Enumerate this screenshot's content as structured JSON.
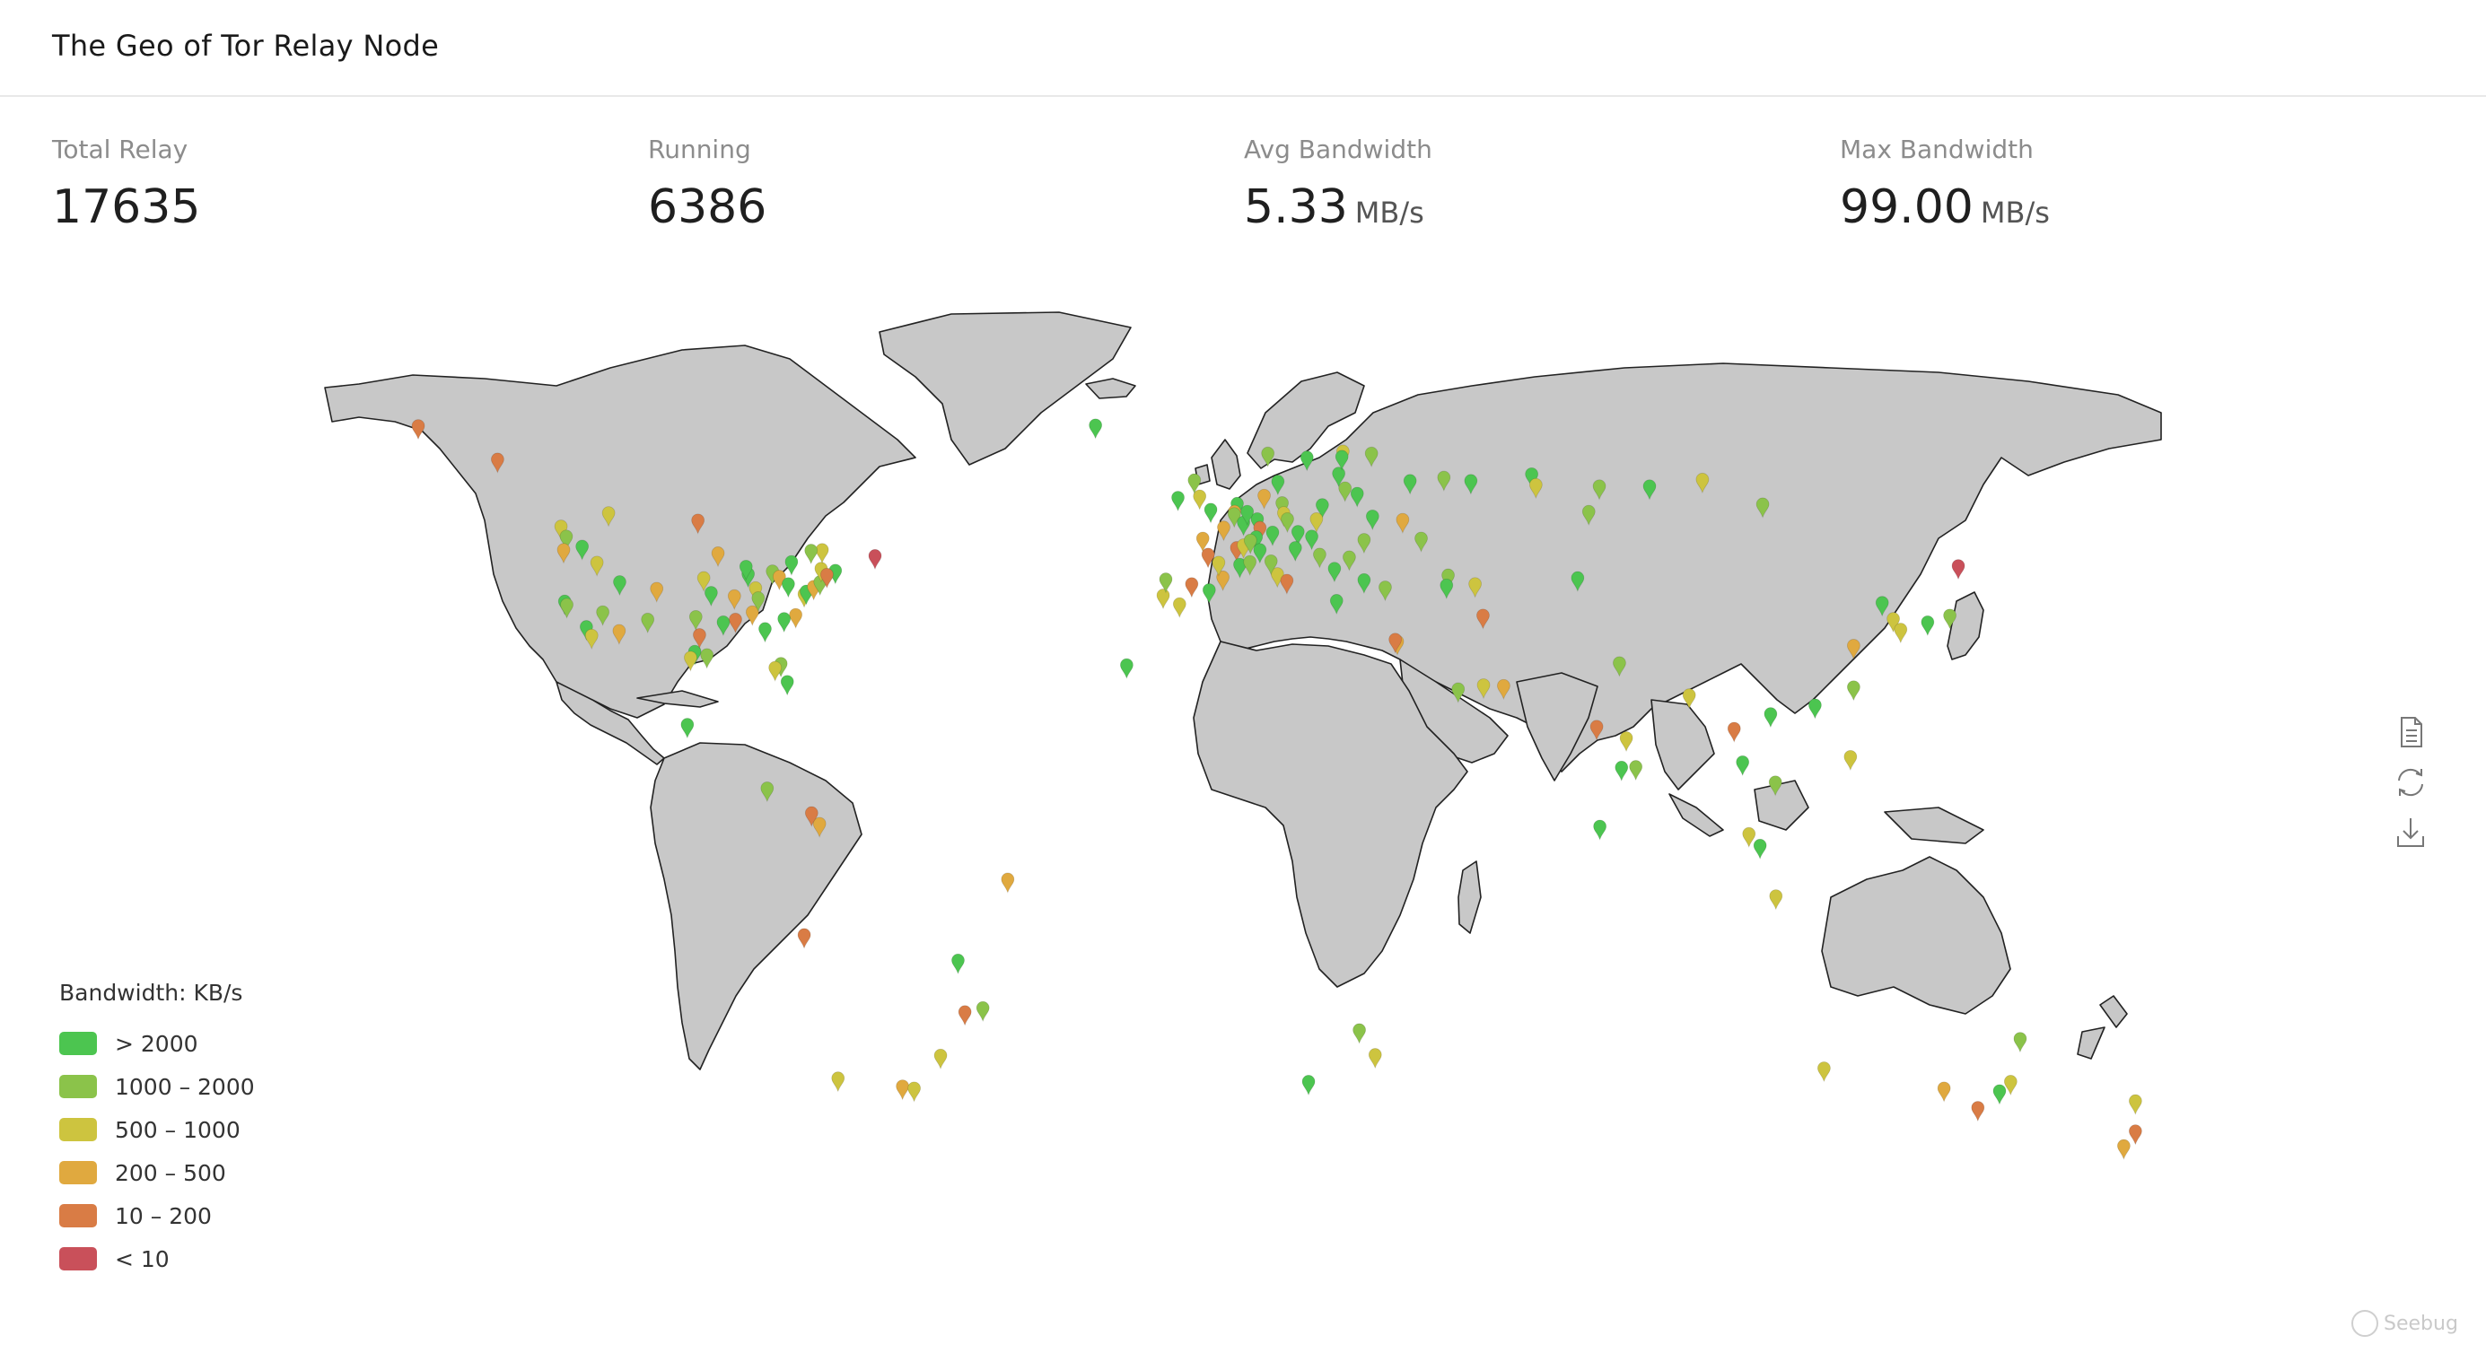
{
  "header": {
    "title": "The Geo of Tor Relay Node"
  },
  "stats": [
    {
      "label": "Total Relay",
      "value": "17635",
      "unit": ""
    },
    {
      "label": "Running",
      "value": "6386",
      "unit": ""
    },
    {
      "label": "Avg Bandwidth",
      "value": "5.33",
      "unit": "MB/s"
    },
    {
      "label": "Max Bandwidth",
      "value": "99.00",
      "unit": "MB/s"
    }
  ],
  "legend": {
    "title": "Bandwidth: KB/s",
    "items": [
      {
        "label": "> 2000",
        "color": "#4cc550"
      },
      {
        "label": "1000 – 2000",
        "color": "#8bc34a"
      },
      {
        "label": "500 – 1000",
        "color": "#cdc43f"
      },
      {
        "label": "200 – 500",
        "color": "#e0a93f"
      },
      {
        "label": "10 – 200",
        "color": "#d97c45"
      },
      {
        "label": "< 10",
        "color": "#c9505a"
      }
    ]
  },
  "toolbox": [
    "data-view-icon",
    "restore-icon",
    "save-image-icon"
  ],
  "watermark": "Seebug",
  "map": {
    "projection": "equirectangular",
    "land_color": "#c8c8c8",
    "border_color": "#222222",
    "markers": [
      {
        "lon": -150,
        "lat": 64,
        "c": 4
      },
      {
        "lon": -135,
        "lat": 59,
        "c": 4
      },
      {
        "lon": -123,
        "lat": 49,
        "c": 2
      },
      {
        "lon": -122,
        "lat": 47.5,
        "c": 1
      },
      {
        "lon": -122.5,
        "lat": 45.5,
        "c": 3
      },
      {
        "lon": -119,
        "lat": 46,
        "c": 0
      },
      {
        "lon": -122.3,
        "lat": 37.8,
        "c": 0
      },
      {
        "lon": -121.9,
        "lat": 37.3,
        "c": 1
      },
      {
        "lon": -118.2,
        "lat": 34,
        "c": 0
      },
      {
        "lon": -117.2,
        "lat": 32.7,
        "c": 2
      },
      {
        "lon": -115.1,
        "lat": 36.2,
        "c": 1
      },
      {
        "lon": -112,
        "lat": 33.4,
        "c": 3
      },
      {
        "lon": -111.9,
        "lat": 40.7,
        "c": 0
      },
      {
        "lon": -116.2,
        "lat": 43.6,
        "c": 2
      },
      {
        "lon": -104.9,
        "lat": 39.7,
        "c": 3
      },
      {
        "lon": -106.6,
        "lat": 35.1,
        "c": 1
      },
      {
        "lon": -97.7,
        "lat": 30.3,
        "c": 0
      },
      {
        "lon": -96.8,
        "lat": 32.8,
        "c": 4
      },
      {
        "lon": -95.4,
        "lat": 29.8,
        "c": 1
      },
      {
        "lon": -98.5,
        "lat": 29.4,
        "c": 2
      },
      {
        "lon": -93.3,
        "lat": 45,
        "c": 3
      },
      {
        "lon": -94.6,
        "lat": 39.1,
        "c": 0
      },
      {
        "lon": -90.2,
        "lat": 38.6,
        "c": 3
      },
      {
        "lon": -87.6,
        "lat": 41.9,
        "c": 0
      },
      {
        "lon": -86.2,
        "lat": 39.8,
        "c": 2
      },
      {
        "lon": -84.4,
        "lat": 33.7,
        "c": 0
      },
      {
        "lon": -83,
        "lat": 42.3,
        "c": 1
      },
      {
        "lon": -81.7,
        "lat": 41.5,
        "c": 3
      },
      {
        "lon": -80,
        "lat": 40.4,
        "c": 0
      },
      {
        "lon": -77,
        "lat": 38.9,
        "c": 2
      },
      {
        "lon": -76.6,
        "lat": 39.3,
        "c": 0
      },
      {
        "lon": -75.2,
        "lat": 40,
        "c": 3
      },
      {
        "lon": -74,
        "lat": 40.7,
        "c": 1
      },
      {
        "lon": -73.8,
        "lat": 42.7,
        "c": 2
      },
      {
        "lon": -71.1,
        "lat": 42.4,
        "c": 0
      },
      {
        "lon": -72.7,
        "lat": 41.8,
        "c": 4
      },
      {
        "lon": -78.6,
        "lat": 35.8,
        "c": 3
      },
      {
        "lon": -80.8,
        "lat": 35.2,
        "c": 0
      },
      {
        "lon": -81.4,
        "lat": 28.5,
        "c": 1
      },
      {
        "lon": -80.2,
        "lat": 25.8,
        "c": 0
      },
      {
        "lon": -82.5,
        "lat": 27.9,
        "c": 2
      },
      {
        "lon": -86.8,
        "lat": 36.2,
        "c": 3
      },
      {
        "lon": -85.7,
        "lat": 38.3,
        "c": 1
      },
      {
        "lon": -90,
        "lat": 35.1,
        "c": 4
      },
      {
        "lon": -92.3,
        "lat": 34.7,
        "c": 0
      },
      {
        "lon": -97.5,
        "lat": 35.5,
        "c": 1
      },
      {
        "lon": -96,
        "lat": 41.3,
        "c": 2
      },
      {
        "lon": -88,
        "lat": 43,
        "c": 0
      },
      {
        "lon": -79.4,
        "lat": 43.7,
        "c": 0
      },
      {
        "lon": -73.6,
        "lat": 45.5,
        "c": 2
      },
      {
        "lon": -75.7,
        "lat": 45.4,
        "c": 1
      },
      {
        "lon": -63.6,
        "lat": 44.6,
        "c": 5
      },
      {
        "lon": -114,
        "lat": 51,
        "c": 2
      },
      {
        "lon": -97.1,
        "lat": 49.9,
        "c": 4
      },
      {
        "lon": -99.1,
        "lat": 19.4,
        "c": 0
      },
      {
        "lon": -84,
        "lat": 9.9,
        "c": 1
      },
      {
        "lon": -74.1,
        "lat": 4.6,
        "c": 3
      },
      {
        "lon": -75.6,
        "lat": 6.2,
        "c": 4
      },
      {
        "lon": -77,
        "lat": -12,
        "c": 4
      },
      {
        "lon": -70.6,
        "lat": -33.4,
        "c": 2
      },
      {
        "lon": -58.4,
        "lat": -34.6,
        "c": 3
      },
      {
        "lon": -56.2,
        "lat": -34.9,
        "c": 2
      },
      {
        "lon": -46.6,
        "lat": -23.5,
        "c": 4
      },
      {
        "lon": -43.2,
        "lat": -22.9,
        "c": 1
      },
      {
        "lon": -47.9,
        "lat": -15.8,
        "c": 0
      },
      {
        "lon": -38.5,
        "lat": -3.7,
        "c": 3
      },
      {
        "lon": -51.2,
        "lat": -30,
        "c": 2
      },
      {
        "lon": -21.9,
        "lat": 64.1,
        "c": 0
      },
      {
        "lon": -16,
        "lat": 28.3,
        "c": 0
      },
      {
        "lon": -9.1,
        "lat": 38.7,
        "c": 2
      },
      {
        "lon": -8.6,
        "lat": 41.1,
        "c": 1
      },
      {
        "lon": -3.7,
        "lat": 40.4,
        "c": 4
      },
      {
        "lon": 2.2,
        "lat": 41.4,
        "c": 3
      },
      {
        "lon": -0.4,
        "lat": 39.5,
        "c": 0
      },
      {
        "lon": -6,
        "lat": 37.4,
        "c": 2
      },
      {
        "lon": 2.35,
        "lat": 48.85,
        "c": 3
      },
      {
        "lon": 4.8,
        "lat": 45.8,
        "c": 4
      },
      {
        "lon": 5.4,
        "lat": 43.3,
        "c": 0
      },
      {
        "lon": -1.6,
        "lat": 47.2,
        "c": 3
      },
      {
        "lon": -0.6,
        "lat": 44.8,
        "c": 4
      },
      {
        "lon": 1.4,
        "lat": 43.6,
        "c": 2
      },
      {
        "lon": 7.3,
        "lat": 43.7,
        "c": 1
      },
      {
        "lon": -0.1,
        "lat": 51.5,
        "c": 0
      },
      {
        "lon": -2.2,
        "lat": 53.5,
        "c": 2
      },
      {
        "lon": -3.2,
        "lat": 55.9,
        "c": 1
      },
      {
        "lon": -6.3,
        "lat": 53.3,
        "c": 0
      },
      {
        "lon": 4.9,
        "lat": 52.4,
        "c": 0
      },
      {
        "lon": 4.4,
        "lat": 51.2,
        "c": 3
      },
      {
        "lon": 4.35,
        "lat": 50.85,
        "c": 1
      },
      {
        "lon": 6.1,
        "lat": 49.6,
        "c": 0
      },
      {
        "lon": 8.7,
        "lat": 50.1,
        "c": 0
      },
      {
        "lon": 13.4,
        "lat": 52.5,
        "c": 1
      },
      {
        "lon": 10,
        "lat": 53.6,
        "c": 3
      },
      {
        "lon": 11.6,
        "lat": 48.1,
        "c": 0
      },
      {
        "lon": 9.2,
        "lat": 48.8,
        "c": 4
      },
      {
        "lon": 6.8,
        "lat": 51.2,
        "c": 0
      },
      {
        "lon": 13.7,
        "lat": 51,
        "c": 2
      },
      {
        "lon": 8.5,
        "lat": 47.4,
        "c": 0
      },
      {
        "lon": 6.1,
        "lat": 46.2,
        "c": 2
      },
      {
        "lon": 7.4,
        "lat": 46.9,
        "c": 1
      },
      {
        "lon": 16.4,
        "lat": 48.2,
        "c": 0
      },
      {
        "lon": 14.4,
        "lat": 50.1,
        "c": 1
      },
      {
        "lon": 19,
        "lat": 47.5,
        "c": 0
      },
      {
        "lon": 21,
        "lat": 52.2,
        "c": 0
      },
      {
        "lon": 19.9,
        "lat": 50.1,
        "c": 2
      },
      {
        "lon": 12.6,
        "lat": 55.7,
        "c": 0
      },
      {
        "lon": 10.7,
        "lat": 59.9,
        "c": 1
      },
      {
        "lon": 18.1,
        "lat": 59.3,
        "c": 0
      },
      {
        "lon": 24.9,
        "lat": 60.2,
        "c": 2
      },
      {
        "lon": 24.1,
        "lat": 56.9,
        "c": 0
      },
      {
        "lon": 25.3,
        "lat": 54.7,
        "c": 1
      },
      {
        "lon": 24.7,
        "lat": 59.4,
        "c": 0
      },
      {
        "lon": 12.5,
        "lat": 41.9,
        "c": 2
      },
      {
        "lon": 9.2,
        "lat": 45.5,
        "c": 0
      },
      {
        "lon": 11.3,
        "lat": 43.8,
        "c": 1
      },
      {
        "lon": 14.3,
        "lat": 40.9,
        "c": 4
      },
      {
        "lon": 23.7,
        "lat": 37.9,
        "c": 0
      },
      {
        "lon": 26.1,
        "lat": 44.4,
        "c": 1
      },
      {
        "lon": 23.3,
        "lat": 42.7,
        "c": 0
      },
      {
        "lon": 20.5,
        "lat": 44.8,
        "c": 1
      },
      {
        "lon": 15.9,
        "lat": 45.8,
        "c": 0
      },
      {
        "lon": 30.5,
        "lat": 50.5,
        "c": 0
      },
      {
        "lon": 28.9,
        "lat": 47,
        "c": 1
      },
      {
        "lon": 27.6,
        "lat": 53.9,
        "c": 0
      },
      {
        "lon": 30.3,
        "lat": 59.9,
        "c": 1
      },
      {
        "lon": 37.6,
        "lat": 55.8,
        "c": 0
      },
      {
        "lon": 36.2,
        "lat": 50,
        "c": 3
      },
      {
        "lon": 39.7,
        "lat": 47.2,
        "c": 1
      },
      {
        "lon": 49.1,
        "lat": 55.8,
        "c": 0
      },
      {
        "lon": 44,
        "lat": 56.3,
        "c": 1
      },
      {
        "lon": 60.6,
        "lat": 56.8,
        "c": 0
      },
      {
        "lon": 73.4,
        "lat": 55,
        "c": 1
      },
      {
        "lon": 82.9,
        "lat": 55,
        "c": 0
      },
      {
        "lon": 92.9,
        "lat": 56,
        "c": 2
      },
      {
        "lon": 104.3,
        "lat": 52.3,
        "c": 1
      },
      {
        "lon": 61.4,
        "lat": 55.2,
        "c": 2
      },
      {
        "lon": 28.9,
        "lat": 41,
        "c": 0
      },
      {
        "lon": 32.9,
        "lat": 39.9,
        "c": 1
      },
      {
        "lon": 35.2,
        "lat": 31.8,
        "c": 3
      },
      {
        "lon": 34.8,
        "lat": 32.1,
        "c": 4
      },
      {
        "lon": 44.8,
        "lat": 41.7,
        "c": 1
      },
      {
        "lon": 44.5,
        "lat": 40.2,
        "c": 0
      },
      {
        "lon": 49.9,
        "lat": 40.4,
        "c": 2
      },
      {
        "lon": 51.4,
        "lat": 35.7,
        "c": 4
      },
      {
        "lon": 55.3,
        "lat": 25.2,
        "c": 3
      },
      {
        "lon": 46.7,
        "lat": 24.7,
        "c": 1
      },
      {
        "lon": 51.5,
        "lat": 25.3,
        "c": 2
      },
      {
        "lon": 71.4,
        "lat": 51.2,
        "c": 1
      },
      {
        "lon": 69.3,
        "lat": 41.3,
        "c": 0
      },
      {
        "lon": 77.2,
        "lat": 28.6,
        "c": 1
      },
      {
        "lon": 72.9,
        "lat": 19.1,
        "c": 4
      },
      {
        "lon": 77.6,
        "lat": 13,
        "c": 0
      },
      {
        "lon": 80.3,
        "lat": 13.1,
        "c": 1
      },
      {
        "lon": 78.5,
        "lat": 17.4,
        "c": 2
      },
      {
        "lon": 90.4,
        "lat": 23.8,
        "c": 2
      },
      {
        "lon": 100.5,
        "lat": 13.8,
        "c": 0
      },
      {
        "lon": 98.9,
        "lat": 18.8,
        "c": 4
      },
      {
        "lon": 105.8,
        "lat": 21,
        "c": 0
      },
      {
        "lon": 106.7,
        "lat": 10.8,
        "c": 1
      },
      {
        "lon": 101.7,
        "lat": 3.1,
        "c": 2
      },
      {
        "lon": 103.8,
        "lat": 1.35,
        "c": 0
      },
      {
        "lon": 106.8,
        "lat": -6.2,
        "c": 2
      },
      {
        "lon": 114.2,
        "lat": 22.3,
        "c": 0
      },
      {
        "lon": 121.5,
        "lat": 25,
        "c": 1
      },
      {
        "lon": 121.5,
        "lat": 31.2,
        "c": 3
      },
      {
        "lon": 120.9,
        "lat": 14.6,
        "c": 2
      },
      {
        "lon": 126.9,
        "lat": 37.6,
        "c": 0
      },
      {
        "lon": 129,
        "lat": 35.2,
        "c": 2
      },
      {
        "lon": 139.7,
        "lat": 35.7,
        "c": 1
      },
      {
        "lon": 135.5,
        "lat": 34.7,
        "c": 0
      },
      {
        "lon": 141.3,
        "lat": 43.1,
        "c": 5
      },
      {
        "lon": 130.4,
        "lat": 33.6,
        "c": 2
      },
      {
        "lon": 73.5,
        "lat": 4.2,
        "c": 0
      },
      {
        "lon": 28,
        "lat": -26.2,
        "c": 1
      },
      {
        "lon": 18.4,
        "lat": -33.9,
        "c": 0
      },
      {
        "lon": 31,
        "lat": -29.9,
        "c": 2
      },
      {
        "lon": 151.2,
        "lat": -33.9,
        "c": 2
      },
      {
        "lon": 145,
        "lat": -37.8,
        "c": 4
      },
      {
        "lon": 153,
        "lat": -27.5,
        "c": 1
      },
      {
        "lon": 138.6,
        "lat": -34.9,
        "c": 3
      },
      {
        "lon": 149.1,
        "lat": -35.3,
        "c": 0
      },
      {
        "lon": 115.9,
        "lat": -31.9,
        "c": 2
      },
      {
        "lon": 174.8,
        "lat": -36.8,
        "c": 2
      },
      {
        "lon": 174.8,
        "lat": -41.3,
        "c": 4
      },
      {
        "lon": 172.6,
        "lat": -43.5,
        "c": 3
      }
    ]
  }
}
